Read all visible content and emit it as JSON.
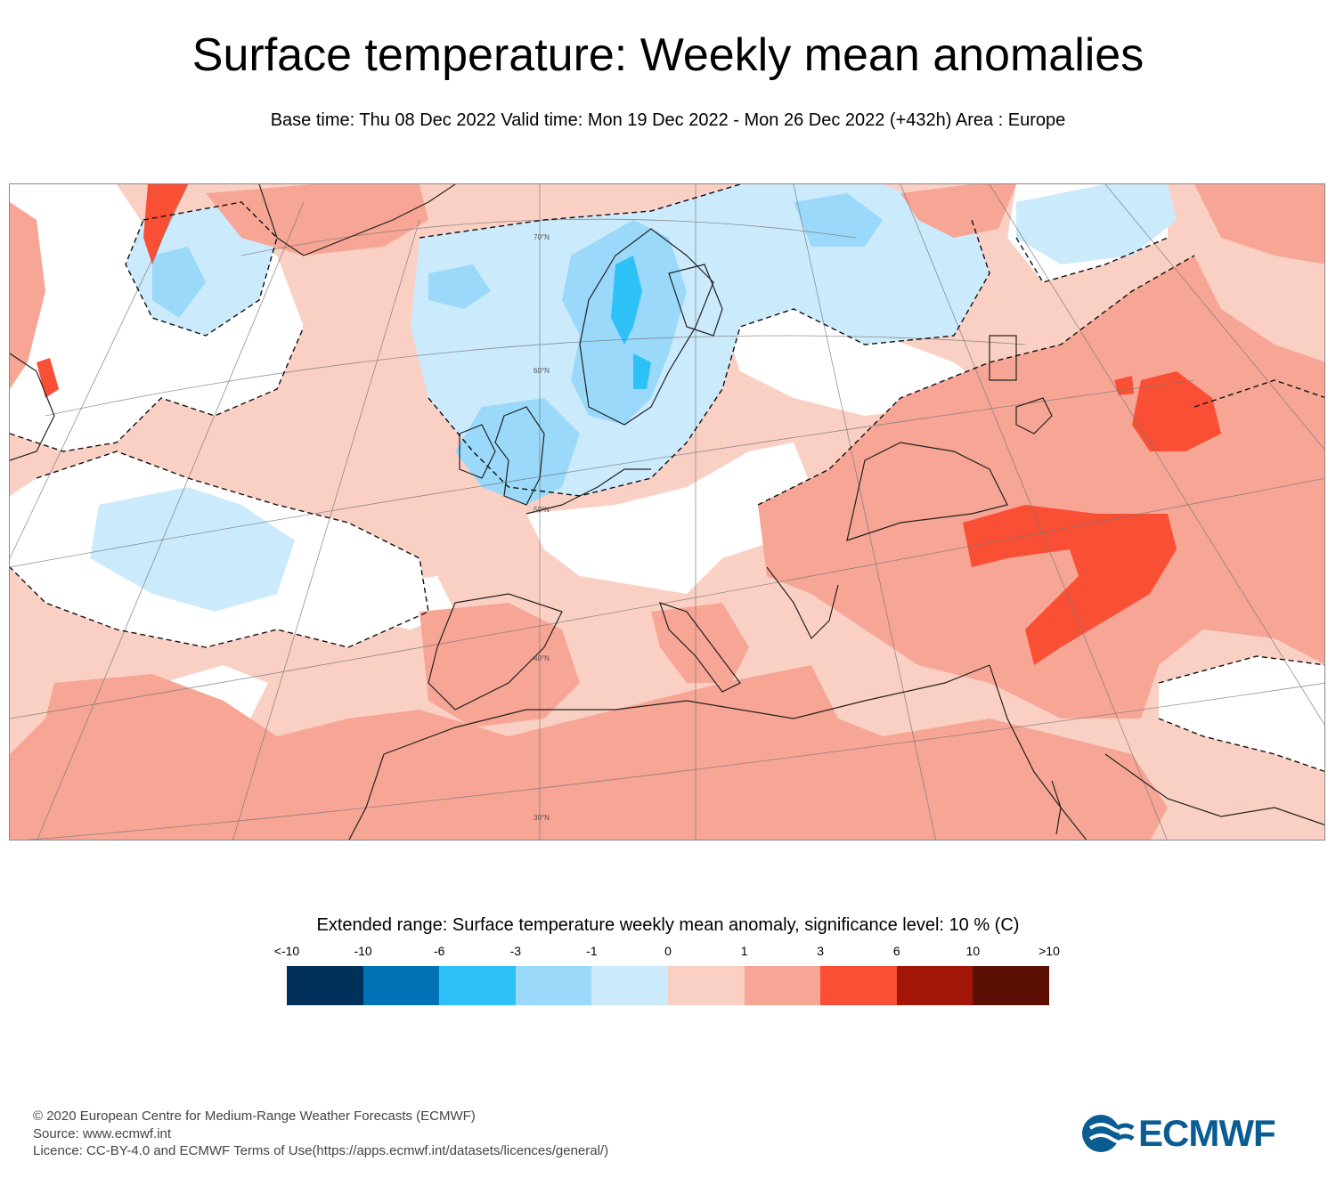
{
  "title": "Surface temperature: Weekly mean anomalies",
  "subtitle": "Base time: Thu 08 Dec 2022 Valid time: Mon 19 Dec 2022 - Mon 26 Dec 2022 (+432h) Area : Europe",
  "map": {
    "description_area": "Europe",
    "latitude_labels": [
      "70°N",
      "60°N",
      "50°N",
      "40°N",
      "30°N"
    ]
  },
  "legend": {
    "title": "Extended range: Surface temperature weekly mean anomaly, significance level: 10 % (C)",
    "labels": [
      "<-10",
      "-10",
      "-6",
      "-3",
      "-1",
      "0",
      "1",
      "3",
      "6",
      "10",
      ">10"
    ],
    "colors": [
      "#00315a",
      "#0072b5",
      "#2ec1f7",
      "#9ad9fa",
      "#cbeafc",
      "#fbd0c4",
      "#f7a595",
      "#f94f35",
      "#a31507",
      "#5c0f05"
    ]
  },
  "footer": {
    "copyright": "© 2020 European Centre for Medium-Range Weather Forecasts (ECMWF)",
    "source": "Source: www.ecmwf.int",
    "licence": "Licence: CC-BY-4.0 and ECMWF Terms of Use(https://apps.ecmwf.int/datasets/licences/general/)"
  },
  "logo": {
    "text": "ECMWF",
    "color": "#0a5d93"
  }
}
